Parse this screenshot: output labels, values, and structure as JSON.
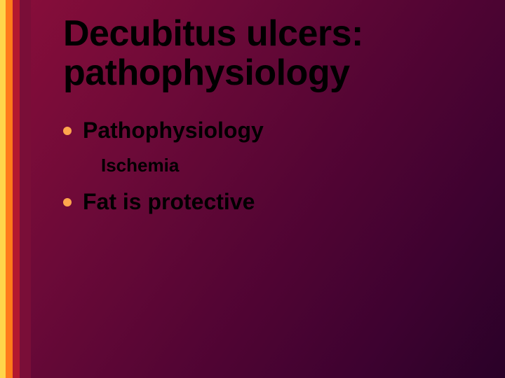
{
  "slide": {
    "title": "Decubitus ulcers: pathophysiology",
    "bullets": [
      {
        "text": "Pathophysiology",
        "bullet_color": "#ffa64d",
        "sub": [
          {
            "text": "Ischemia"
          }
        ]
      },
      {
        "text": "Fat is protective",
        "bullet_color": "#ffa64d",
        "sub": []
      }
    ],
    "stripes": [
      "#ffd54a",
      "#ff7a1a",
      "#b3182f",
      "#7a0e38"
    ],
    "background_gradient": {
      "angle": 125,
      "stops": [
        "#8a0e3a",
        "#6d0a38",
        "#550534",
        "#3e0230",
        "#2a0128"
      ]
    },
    "title_fontsize": 52,
    "bullet_fontsize": 32,
    "sub_fontsize": 26
  }
}
